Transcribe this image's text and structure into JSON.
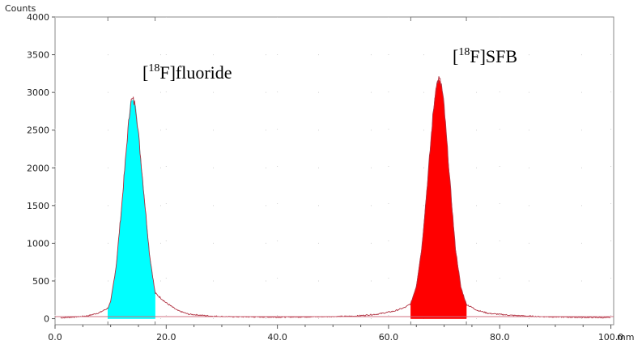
{
  "chart_data": {
    "type": "area",
    "ylabel": "Counts",
    "xunit": "mm",
    "xlim": [
      0,
      100.5
    ],
    "ylim": [
      -80,
      4000
    ],
    "xticks": [
      {
        "value": 0,
        "label": "0.0"
      },
      {
        "value": 20,
        "label": "20.0"
      },
      {
        "value": 40,
        "label": "40.0"
      },
      {
        "value": 60,
        "label": "60.0"
      },
      {
        "value": 80,
        "label": "80.0"
      },
      {
        "value": 100,
        "label": "100.0"
      }
    ],
    "yticks": [
      0,
      500,
      1000,
      1500,
      2000,
      2500,
      3000,
      3500,
      4000
    ],
    "grid": true,
    "trace_color": "#b03040",
    "x": [
      1,
      4,
      6,
      8,
      9.5,
      10,
      11,
      12,
      13,
      13.6,
      14,
      14.5,
      15,
      16,
      17,
      18,
      20,
      22,
      24,
      28,
      32,
      40,
      48,
      54,
      58,
      61,
      63,
      64,
      65,
      66,
      67,
      68,
      68.5,
      69,
      69.5,
      70,
      71,
      72,
      73,
      74,
      76,
      78,
      82,
      88,
      94,
      100
    ],
    "y": [
      10,
      25,
      40,
      80,
      140,
      220,
      700,
      1500,
      2400,
      2880,
      2900,
      2820,
      2450,
      1650,
      850,
      340,
      210,
      110,
      60,
      35,
      25,
      20,
      25,
      35,
      60,
      100,
      150,
      200,
      430,
      950,
      1800,
      2700,
      3050,
      3180,
      3100,
      2800,
      1850,
      950,
      420,
      190,
      110,
      70,
      45,
      25,
      18,
      12
    ],
    "regions": [
      {
        "name": "[18F]fluoride",
        "x_start": 9.5,
        "x_end": 18.0,
        "color": "#00ffff",
        "label_main_prefix": "[",
        "label_sup": "18",
        "label_main_suffix": "F]fluoride"
      },
      {
        "name": "[18F]SFB",
        "x_start": 64.0,
        "x_end": 74.0,
        "color": "#ff0000",
        "label_main_prefix": "[",
        "label_sup": "18",
        "label_main_suffix": "F]SFB"
      }
    ]
  }
}
